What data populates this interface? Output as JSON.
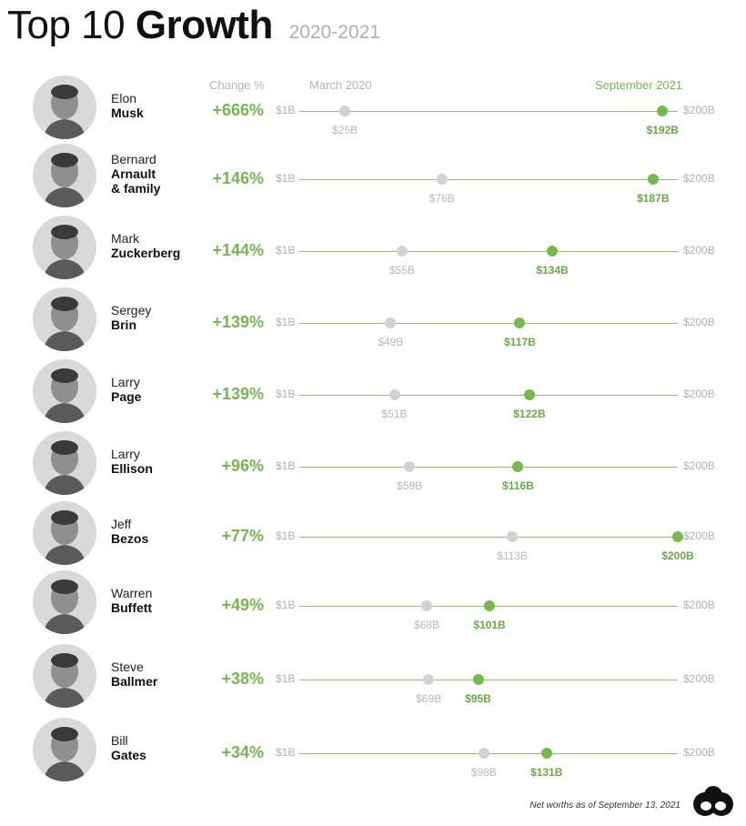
{
  "title": {
    "prefix": "Top 10",
    "main": "Growth",
    "years": "2020-2021"
  },
  "headers": {
    "change": "Change %",
    "start": "March 2020",
    "end": "September 2021"
  },
  "footnote": "Net worths as of September 13, 2021",
  "colors": {
    "green": "#77b552",
    "gray": "#d2d2d2"
  },
  "chart_data": {
    "type": "dumbbell",
    "title": "Top 10 Growth",
    "subtitle": "2020-2021",
    "axis_min_label": "$1B",
    "axis_max_label": "$200B",
    "xlim": [
      1,
      200
    ],
    "series": [
      {
        "name": "March 2020"
      },
      {
        "name": "September 2021"
      }
    ],
    "rows": [
      {
        "first": "Elon",
        "last": "Musk",
        "change": "+666%",
        "start": 25,
        "end": 192,
        "start_label": "$25B",
        "end_label": "$192B"
      },
      {
        "first": "Bernard",
        "last": "Arnault",
        "last2": "& family",
        "change": "+146%",
        "start": 76,
        "end": 187,
        "start_label": "$76B",
        "end_label": "$187B"
      },
      {
        "first": "Mark",
        "last": "Zuckerberg",
        "change": "+144%",
        "start": 55,
        "end": 134,
        "start_label": "$55B",
        "end_label": "$134B"
      },
      {
        "first": "Sergey",
        "last": "Brin",
        "change": "+139%",
        "start": 49,
        "end": 117,
        "start_label": "$49B",
        "end_label": "$117B"
      },
      {
        "first": "Larry",
        "last": "Page",
        "change": "+139%",
        "start": 51,
        "end": 122,
        "start_label": "$51B",
        "end_label": "$122B"
      },
      {
        "first": "Larry",
        "last": "Ellison",
        "change": "+96%",
        "start": 59,
        "end": 116,
        "start_label": "$59B",
        "end_label": "$116B"
      },
      {
        "first": "Jeff",
        "last": "Bezos",
        "change": "+77%",
        "start": 113,
        "end": 200,
        "start_label": "$113B",
        "end_label": "$200B"
      },
      {
        "first": "Warren",
        "last": "Buffett",
        "change": "+49%",
        "start": 68,
        "end": 101,
        "start_label": "$68B",
        "end_label": "$101B"
      },
      {
        "first": "Steve",
        "last": "Ballmer",
        "change": "+38%",
        "start": 69,
        "end": 95,
        "start_label": "$69B",
        "end_label": "$95B"
      },
      {
        "first": "Bill",
        "last": "Gates",
        "change": "+34%",
        "start": 98,
        "end": 131,
        "start_label": "$98B",
        "end_label": "$131B"
      }
    ]
  }
}
